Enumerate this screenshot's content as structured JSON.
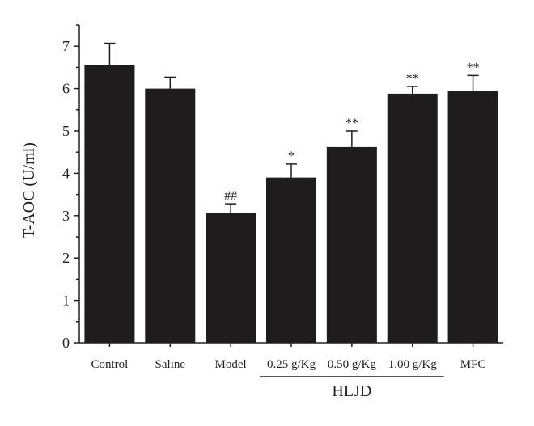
{
  "chart_data": {
    "type": "bar",
    "categories": [
      "Control",
      "Saline",
      "Model",
      "0.25 g/Kg",
      "0.50 g/Kg",
      "1.00 g/Kg",
      "MFC"
    ],
    "values": [
      6.55,
      6.0,
      3.07,
      3.9,
      4.62,
      5.88,
      5.95
    ],
    "error": [
      0.52,
      0.27,
      0.21,
      0.32,
      0.38,
      0.17,
      0.36
    ],
    "significance": [
      "",
      "",
      "##",
      "*",
      "**",
      "**",
      "**"
    ],
    "ylabel": "T-AOC (U/ml)",
    "xlabel": "",
    "ylim": [
      0,
      7.5
    ],
    "yticks": [
      "0",
      "1",
      "2",
      "3",
      "4",
      "5",
      "6",
      "7"
    ],
    "group": {
      "label": "HLJD",
      "categories": [
        "0.25 g/Kg",
        "0.50 g/Kg",
        "1.00 g/Kg"
      ]
    },
    "bar_color": "#1e1c1d",
    "axis_color": "#231f20",
    "grid": false,
    "legend": "none"
  }
}
